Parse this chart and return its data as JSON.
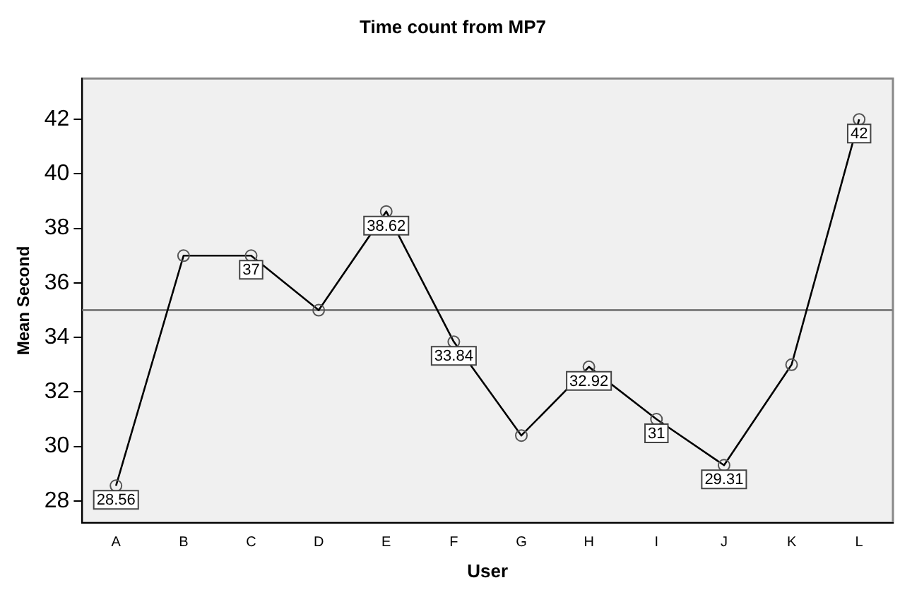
{
  "chart_data": {
    "type": "line",
    "title": "Time count from MP7",
    "xlabel": "User",
    "ylabel": "Mean Second",
    "categories": [
      "A",
      "B",
      "C",
      "D",
      "E",
      "F",
      "G",
      "H",
      "I",
      "J",
      "K",
      "L"
    ],
    "series": [
      {
        "color": "#000000",
        "values": [
          28.56,
          37,
          37,
          35,
          38.62,
          33.84,
          30.4,
          32.92,
          31,
          29.31,
          33,
          42
        ],
        "value_labels": [
          "28.56",
          null,
          "37",
          null,
          "38.62",
          "33.84",
          null,
          "32.92",
          "31",
          "29.31",
          null,
          "42"
        ]
      }
    ],
    "ylim": [
      27.2,
      43.5
    ],
    "yticks": [
      28,
      30,
      32,
      34,
      36,
      38,
      40,
      42
    ],
    "ref_lines": [
      {
        "axis": "y",
        "value": 35,
        "color": "#808080"
      }
    ],
    "grid": false,
    "legend": false,
    "marker": "circle",
    "line_style": "solid"
  }
}
